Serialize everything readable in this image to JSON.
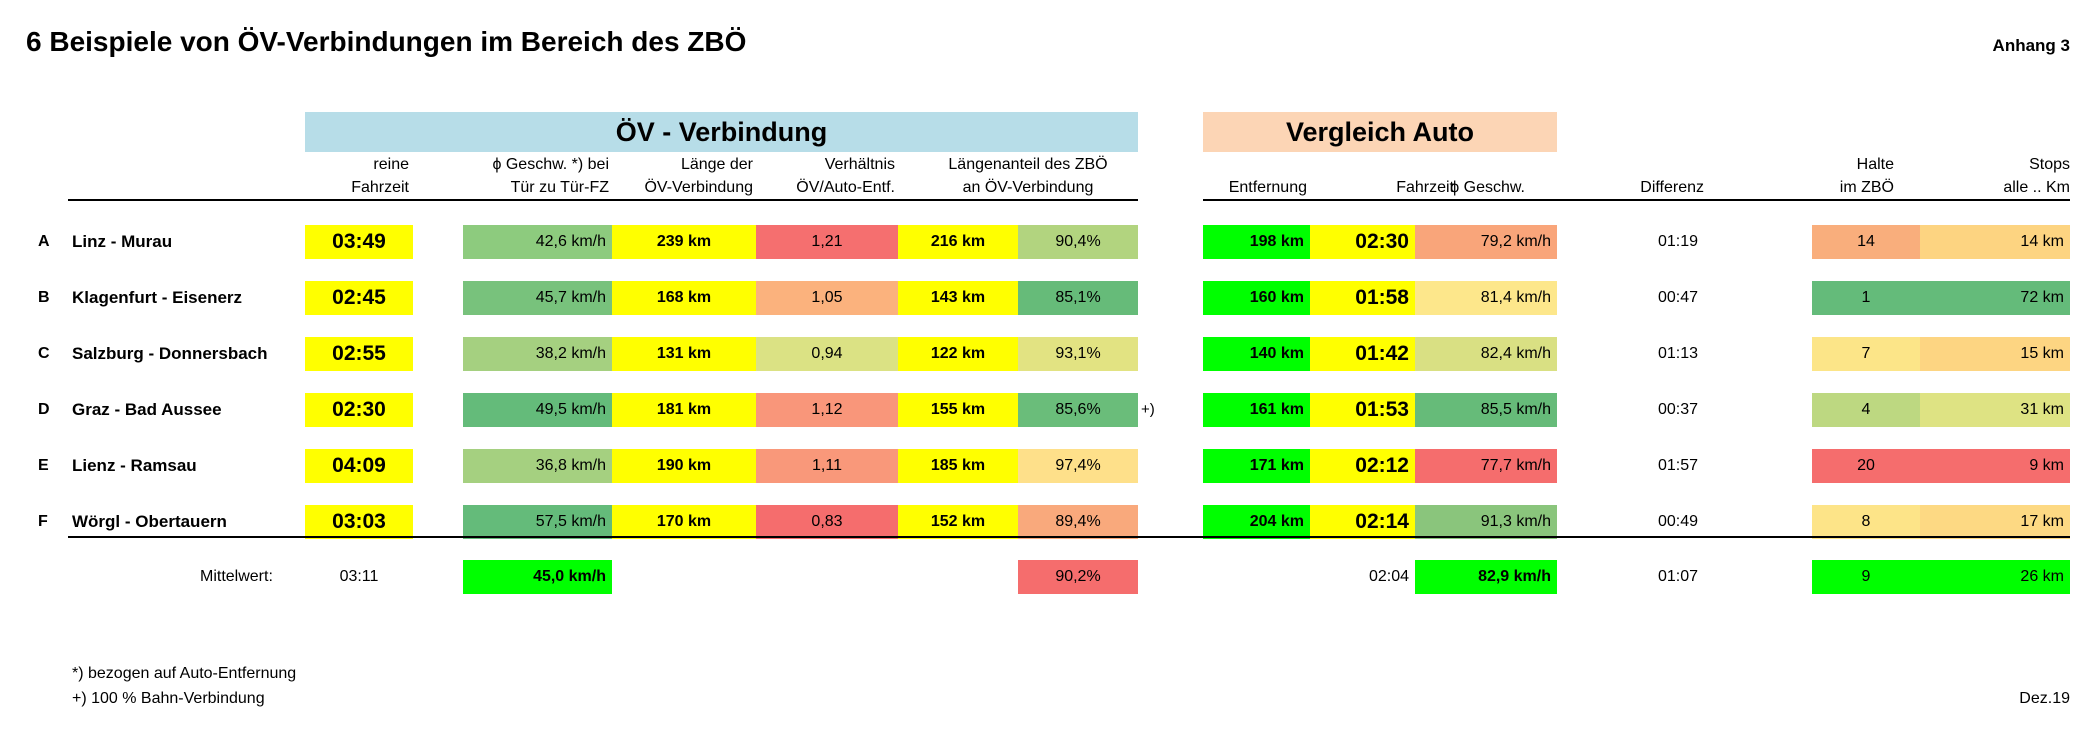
{
  "title": "6 Beispiele von ÖV-Verbindungen im Bereich des ZBÖ",
  "appendix": "Anhang 3",
  "group_oev": "ÖV - Verbindung",
  "group_auto": "Vergleich Auto",
  "headers": {
    "fahrzeit": [
      "reine",
      "Fahrzeit"
    ],
    "geschw": [
      "ϕ Geschw. *) bei",
      "Tür zu Tür-FZ"
    ],
    "laenge": [
      "Länge der",
      "ÖV-Verbindung"
    ],
    "verhaeltnis": [
      "Verhältnis",
      "ÖV/Auto-Entf."
    ],
    "anteil": [
      "Längenanteil des ZBÖ",
      "an ÖV-Verbindung"
    ],
    "entfernung": "Entfernung",
    "auto_fahrzeit": "Fahrzeit",
    "auto_geschw": "ϕ Geschw.",
    "differenz": "Differenz",
    "halte": [
      "Halte",
      "im ZBÖ"
    ],
    "stops": [
      "Stops",
      "alle .. Km"
    ]
  },
  "rows": [
    {
      "letter": "A",
      "route": "Linz - Murau",
      "fahrzeit": "03:49",
      "geschw": "42,6 km/h",
      "laenge": "239 km",
      "verhaeltnis": "1,21",
      "zbo_km": "216 km",
      "anteil": "90,4%",
      "note": "",
      "entfernung": "198 km",
      "auto_fahrzeit": "02:30",
      "auto_geschw": "79,2 km/h",
      "differenz": "01:19",
      "halte": "14",
      "stops": "14 km",
      "colors": {
        "geschw": "#8dcb7e",
        "verhaeltnis": "#f56f6f",
        "anteil": "#b2d47f",
        "auto_geschw": "#f9a57a",
        "halte": "#f9ae7c",
        "stops": "#fdd481"
      }
    },
    {
      "letter": "B",
      "route": "Klagenfurt - Eisenerz",
      "fahrzeit": "02:45",
      "geschw": "45,7 km/h",
      "laenge": "168 km",
      "verhaeltnis": "1,05",
      "zbo_km": "143 km",
      "anteil": "85,1%",
      "note": "",
      "entfernung": "160 km",
      "auto_fahrzeit": "01:58",
      "auto_geschw": "81,4 km/h",
      "differenz": "00:47",
      "halte": "1",
      "stops": "72 km",
      "colors": {
        "geschw": "#78c27c",
        "verhaeltnis": "#fbb27d",
        "anteil": "#66bb79",
        "auto_geschw": "#fde78b",
        "halte": "#64bb7a",
        "stops": "#64bb7a"
      }
    },
    {
      "letter": "C",
      "route": "Salzburg - Donnersbach",
      "fahrzeit": "02:55",
      "geschw": "38,2 km/h",
      "laenge": "131 km",
      "verhaeltnis": "0,94",
      "zbo_km": "122 km",
      "anteil": "93,1%",
      "note": "",
      "entfernung": "140 km",
      "auto_fahrzeit": "01:42",
      "auto_geschw": "82,4 km/h",
      "differenz": "01:13",
      "halte": "7",
      "stops": "15 km",
      "colors": {
        "geschw": "#a5d080",
        "verhaeltnis": "#dbe284",
        "anteil": "#e2e382",
        "auto_geschw": "#d9e083",
        "halte": "#fce588",
        "stops": "#fdd582"
      }
    },
    {
      "letter": "D",
      "route": "Graz - Bad Aussee",
      "fahrzeit": "02:30",
      "geschw": "49,5 km/h",
      "laenge": "181 km",
      "verhaeltnis": "1,12",
      "zbo_km": "155 km",
      "anteil": "85,6%",
      "note": "+)",
      "entfernung": "161 km",
      "auto_fahrzeit": "01:53",
      "auto_geschw": "85,5 km/h",
      "differenz": "00:37",
      "halte": "4",
      "stops": "31 km",
      "colors": {
        "geschw": "#64bb7a",
        "verhaeltnis": "#f9967a",
        "anteil": "#6abd7a",
        "auto_geschw": "#66bb79",
        "halte": "#bdd881",
        "stops": "#dee383"
      }
    },
    {
      "letter": "E",
      "route": "Lienz - Ramsau",
      "fahrzeit": "04:09",
      "geschw": "36,8 km/h",
      "laenge": "190 km",
      "verhaeltnis": "1,11",
      "zbo_km": "185 km",
      "anteil": "97,4%",
      "note": "",
      "entfernung": "171 km",
      "auto_fahrzeit": "02:12",
      "auto_geschw": "77,7 km/h",
      "differenz": "01:57",
      "halte": "20",
      "stops": "9 km",
      "colors": {
        "geschw": "#a5d080",
        "verhaeltnis": "#f9987a",
        "anteil": "#fee08a",
        "auto_geschw": "#f56d6d",
        "halte": "#f56d6d",
        "stops": "#f56d6d"
      }
    },
    {
      "letter": "F",
      "route": "Wörgl - Obertauern",
      "fahrzeit": "03:03",
      "geschw": "57,5 km/h",
      "laenge": "170 km",
      "verhaeltnis": "0,83",
      "zbo_km": "152 km",
      "anteil": "89,4%",
      "note": "",
      "entfernung": "204 km",
      "auto_fahrzeit": "02:14",
      "auto_geschw": "91,3 km/h",
      "differenz": "00:49",
      "halte": "8",
      "stops": "17 km",
      "colors": {
        "geschw": "#64bb7a",
        "verhaeltnis": "#f56d6d",
        "anteil": "#f9a97c",
        "auto_geschw": "#8ac57c",
        "halte": "#fde488",
        "stops": "#fdd983"
      }
    }
  ],
  "mean": {
    "label": "Mittelwert:",
    "fahrzeit": "03:11",
    "geschw": "45,0 km/h",
    "anteil": "90,2%",
    "auto_fahrzeit": "02:04",
    "auto_geschw": "82,9 km/h",
    "differenz": "01:07",
    "halte": "9",
    "stops": "26 km",
    "colors": {
      "geschw": "#00ff00",
      "anteil": "#f56d6d",
      "auto_geschw": "#00ff00",
      "halte": "#00ff00",
      "stops": "#00ff00"
    }
  },
  "footnotes": [
    "*) bezogen auf Auto-Entfernung",
    "+) 100 % Bahn-Verbindung"
  ],
  "date": "Dez.19",
  "palette": {
    "yellow": "#ffff00",
    "green": "#00ff00",
    "oev_band": "#b7dde8",
    "auto_band": "#fcd5b5"
  }
}
